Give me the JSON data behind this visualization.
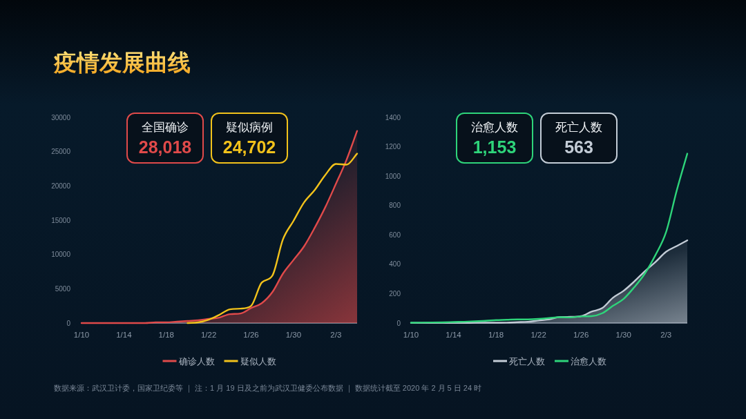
{
  "chart_data": [
    {
      "type": "line",
      "title": "疫情发展曲线",
      "x": [
        "--01-10",
        "--01-11",
        "--01-12",
        "--01-13",
        "--01-14",
        "--01-15",
        "--01-16",
        "--01-17",
        "--01-18",
        "--01-19",
        "--01-20",
        "--01-21",
        "--01-22",
        "--01-23",
        "--01-24",
        "--01-25",
        "--01-26",
        "--01-27",
        "--01-28",
        "--01-29",
        "--01-30",
        "--01-31",
        "--02-01",
        "--02-02",
        "--02-03",
        "--02-04",
        "--02-05"
      ],
      "xlim": [
        "--01-10",
        "--02-05"
      ],
      "xticks": [
        {
          "value": "--01-10",
          "label": "1/10"
        },
        {
          "value": "--01-14",
          "label": "1/14"
        },
        {
          "value": "--01-18",
          "label": "1/18"
        },
        {
          "value": "--01-22",
          "label": "1/22"
        },
        {
          "value": "--01-26",
          "label": "1/26"
        },
        {
          "value": "--01-30",
          "label": "1/30"
        },
        {
          "value": "--02-03",
          "label": "2/3"
        }
      ],
      "ylim": [
        0,
        30000
      ],
      "yticks": [
        0,
        5000,
        10000,
        15000,
        20000,
        25000,
        30000
      ],
      "legend": "bottom",
      "series": [
        {
          "name": "确诊人数",
          "type": "area",
          "color": "#e04a4a",
          "values": [
            0,
            0,
            0,
            0,
            0,
            0,
            0,
            100,
            100,
            200,
            300,
            400,
            600,
            800,
            1300,
            1400,
            2200,
            2900,
            4500,
            7200,
            9200,
            11200,
            13900,
            16900,
            20300,
            23800,
            28018
          ]
        },
        {
          "name": "疑似人数",
          "color": "#f2c21b",
          "values": [
            null,
            null,
            null,
            null,
            null,
            null,
            null,
            null,
            null,
            null,
            0,
            100,
            500,
            1200,
            2000,
            2100,
            2500,
            5900,
            6900,
            12200,
            14900,
            17600,
            19400,
            21600,
            23200,
            23100,
            24702
          ]
        }
      ],
      "annotations": [
        "全国确诊",
        "28,018",
        "疑似病例",
        "24,702",
        "数据来源：武汉卫计委，国家卫纪委等 ｜ 注：1 月 19 日及之前为武汉卫健委公布数据 ｜ 数据统计截至 2020 年 2 月 5 日 24 时"
      ]
    },
    {
      "type": "line",
      "x": [
        "--01-10",
        "--01-11",
        "--01-12",
        "--01-13",
        "--01-14",
        "--01-15",
        "--01-16",
        "--01-17",
        "--01-18",
        "--01-19",
        "--01-20",
        "--01-21",
        "--01-22",
        "--01-23",
        "--01-24",
        "--01-25",
        "--01-26",
        "--01-27",
        "--01-28",
        "--01-29",
        "--01-30",
        "--01-31",
        "--02-01",
        "--02-02",
        "--02-03",
        "--02-04",
        "--02-05"
      ],
      "xlim": [
        "--01-10",
        "--02-05"
      ],
      "xticks": [
        {
          "value": "--01-10",
          "label": "1/10"
        },
        {
          "value": "--01-14",
          "label": "1/14"
        },
        {
          "value": "--01-18",
          "label": "1/18"
        },
        {
          "value": "--01-22",
          "label": "1/22"
        },
        {
          "value": "--01-26",
          "label": "1/26"
        },
        {
          "value": "--01-30",
          "label": "1/30"
        },
        {
          "value": "--02-03",
          "label": "2/3"
        }
      ],
      "ylim": [
        0,
        1400
      ],
      "yticks": [
        0,
        200,
        400,
        600,
        800,
        1000,
        1200,
        1400
      ],
      "legend": "bottom",
      "series": [
        {
          "name": "死亡人数",
          "type": "area",
          "color": "#c3ccd6",
          "values": [
            1,
            1,
            1,
            1,
            1,
            1,
            2,
            2,
            2,
            3,
            6,
            9,
            17,
            25,
            41,
            42,
            47,
            78,
            102,
            172,
            219,
            282,
            352,
            415,
            485,
            524,
            563
          ]
        },
        {
          "name": "治愈人数",
          "color": "#2ed47a",
          "values": [
            2,
            3,
            4,
            5,
            7,
            9,
            12,
            15,
            20,
            22,
            25,
            25,
            28,
            34,
            40,
            38,
            45,
            47,
            67,
            117,
            164,
            243,
            336,
            462,
            618,
            900,
            1153
          ]
        }
      ],
      "annotations": [
        "治愈人数",
        "1,153",
        "死亡人数",
        "563"
      ]
    }
  ]
}
